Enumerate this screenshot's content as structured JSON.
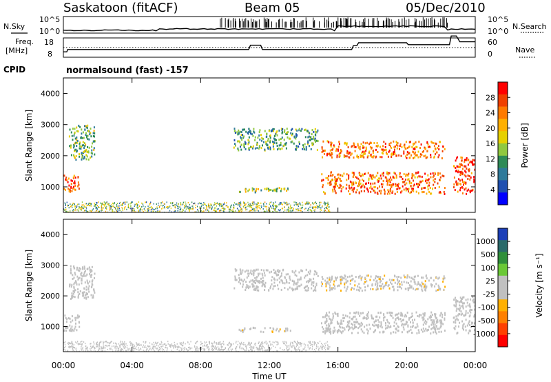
{
  "header": {
    "title": "Saskatoon (fitACF)",
    "beam": "Beam 05",
    "date": "05/Dec/2010",
    "cpid_label": "CPID",
    "cpid_text": "normalsound (fast) -157"
  },
  "nsky_panel": {
    "left_label": "N.Sky",
    "left_ticks": [
      "10^5",
      "10^0"
    ],
    "right_label": "N.Search",
    "right_ticks": [
      "10^5",
      "10^0"
    ]
  },
  "freq_panel": {
    "left_label_line1": "Freq.",
    "left_label_line2": "[MHz]",
    "left_ticks": [
      "18",
      "8"
    ],
    "right_label": "Nave",
    "right_ticks": [
      "60",
      "0"
    ]
  },
  "colorbars": {
    "power": {
      "title": "Power [dB]",
      "ticks": [
        "28",
        "24",
        "20",
        "16",
        "12",
        "8",
        "4"
      ],
      "colors": [
        "#ff0000",
        "#f04000",
        "#ff7a00",
        "#ffb000",
        "#e6d000",
        "#90c840",
        "#2e8b57",
        "#2f7a9a",
        "#1f4fb0",
        "#0000ff"
      ]
    },
    "velocity": {
      "title": "Velocity [m s⁻¹]",
      "ticks": [
        "1000",
        "500",
        "100",
        "25",
        "-25",
        "-100",
        "-500",
        "-1000"
      ],
      "colors": [
        "#1c3fb8",
        "#2a6a6a",
        "#2f8f3a",
        "#6ac836",
        "#c0c0c0",
        "#c0c0c0",
        "#ffb000",
        "#ff8000",
        "#ff4000",
        "#ff0000"
      ]
    }
  },
  "axes": {
    "xlabel": "Time UT",
    "ylabel": "Slant Range [km]",
    "xticks": [
      "00:00",
      "04:00",
      "08:00",
      "12:00",
      "16:00",
      "20:00",
      "00:00"
    ],
    "yticks": [
      "1000",
      "2000",
      "3000",
      "4000"
    ]
  },
  "chart_data": [
    {
      "type": "heatmap",
      "title": "Power [dB]",
      "xlabel": "Time UT",
      "ylabel": "Slant Range [km]",
      "xlim": [
        0,
        24
      ],
      "ylim": [
        180,
        4500
      ],
      "clim": [
        0,
        30
      ],
      "regions": [
        {
          "t": [
            0.0,
            0.9
          ],
          "r": [
            850,
            1400
          ],
          "value": 26
        },
        {
          "t": [
            0.3,
            1.8
          ],
          "r": [
            1900,
            3000
          ],
          "value": 12
        },
        {
          "t": [
            9.9,
            14.8
          ],
          "r": [
            2200,
            2900
          ],
          "value": 10
        },
        {
          "t": [
            10.2,
            13.2
          ],
          "r": [
            850,
            1000
          ],
          "value": 14
        },
        {
          "t": [
            15.0,
            22.2
          ],
          "r": [
            1950,
            2500
          ],
          "value": 24
        },
        {
          "t": [
            15.0,
            22.2
          ],
          "r": [
            800,
            1500
          ],
          "value": 24
        },
        {
          "t": [
            22.7,
            24.0
          ],
          "r": [
            800,
            2000
          ],
          "value": 27
        }
      ]
    },
    {
      "type": "heatmap",
      "title": "Velocity [m s⁻¹]",
      "xlabel": "Time UT",
      "ylabel": "Slant Range [km]",
      "xlim": [
        0,
        24
      ],
      "ylim": [
        180,
        4500
      ],
      "clim": [
        -1000,
        1000
      ],
      "regions": [
        {
          "t": [
            0.0,
            0.9
          ],
          "r": [
            850,
            1400
          ],
          "value": 0
        },
        {
          "t": [
            0.3,
            1.8
          ],
          "r": [
            1900,
            3000
          ],
          "value": 0
        },
        {
          "t": [
            9.9,
            14.8
          ],
          "r": [
            2200,
            2900
          ],
          "value": 0
        },
        {
          "t": [
            10.2,
            13.2
          ],
          "r": [
            850,
            1000
          ],
          "value": -150
        },
        {
          "t": [
            15.0,
            22.2
          ],
          "r": [
            2200,
            2700
          ],
          "value": -150
        },
        {
          "t": [
            15.0,
            22.2
          ],
          "r": [
            800,
            1500
          ],
          "value": 0
        },
        {
          "t": [
            22.7,
            24.0
          ],
          "r": [
            800,
            2000
          ],
          "value": -80
        }
      ]
    },
    {
      "type": "line",
      "title": "Freq. [MHz]",
      "x": [
        0.0,
        0.2,
        0.25,
        10.8,
        10.9,
        11.5,
        11.6,
        16.8,
        16.9,
        17.1,
        17.2,
        20.0,
        20.1,
        22.5,
        22.6,
        22.9,
        23.1,
        24.0
      ],
      "y": [
        10.8,
        10.8,
        12.0,
        12.0,
        14.2,
        14.2,
        12.0,
        12.0,
        14.0,
        14.0,
        15.5,
        15.5,
        14.5,
        14.5,
        19.0,
        19.0,
        16.0,
        16.0
      ],
      "ylim": [
        8,
        18
      ]
    }
  ]
}
